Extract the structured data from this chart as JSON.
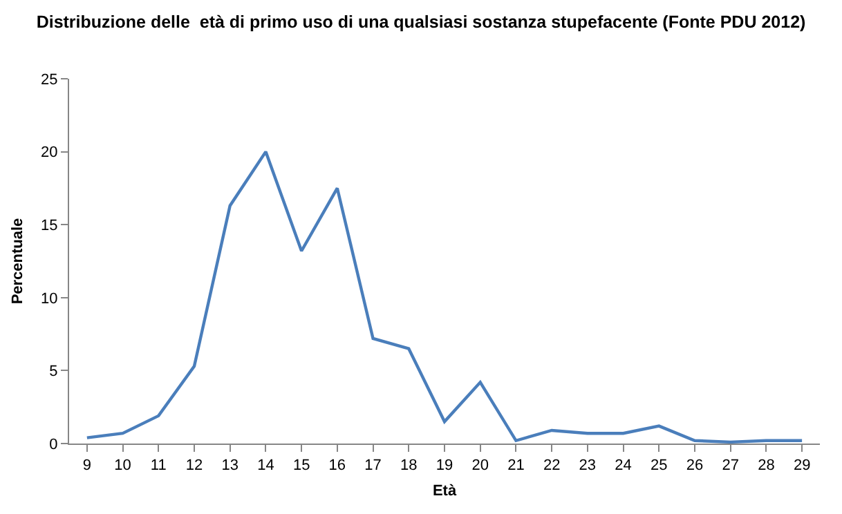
{
  "chart_data": {
    "type": "line",
    "title": "Distribuzione delle  età di primo uso di una qualsiasi sostanza stupefacente (Fonte PDU 2012)",
    "xlabel": "Età",
    "ylabel": "Percentuale",
    "categories": [
      "9",
      "10",
      "11",
      "12",
      "13",
      "14",
      "15",
      "16",
      "17",
      "18",
      "19",
      "20",
      "21",
      "22",
      "23",
      "24",
      "25",
      "26",
      "27",
      "28",
      "29"
    ],
    "series": [
      {
        "color": "#4a7ebb",
        "values": [
          0.4,
          0.7,
          1.9,
          5.3,
          16.3,
          20,
          13.2,
          17.5,
          7.2,
          6.5,
          1.5,
          4.2,
          0.2,
          0.9,
          0.7,
          0.7,
          1.2,
          0.2,
          0.1,
          0.2,
          0.2
        ]
      }
    ],
    "ylim": [
      0,
      25
    ],
    "yticks": [
      0,
      5,
      10,
      15,
      20,
      25
    ],
    "marker": "none",
    "line_style": "solid"
  }
}
